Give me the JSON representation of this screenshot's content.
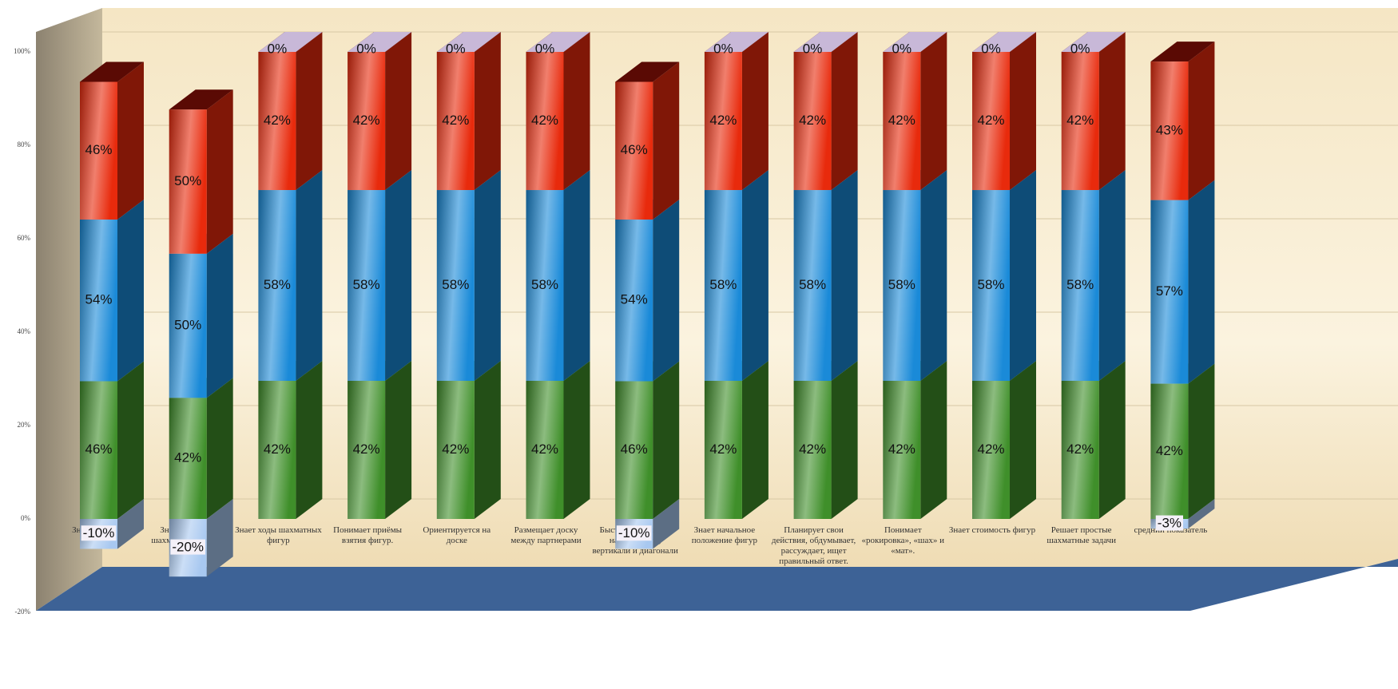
{
  "chart_data": {
    "type": "bar",
    "stacking": "percent",
    "categories": [
      "Знает термины",
      "Знает, называет шахматные фигуры.",
      "Знает ходы шахматных фигур",
      "Понимает приёмы взятия фигур.",
      "Ориентируется на доске",
      "Размещает доску между партнерами",
      "Быстро, правильно находит поля, вертикали и диагонали",
      "Знает начальное положение фигур",
      "Планирует свои действия, обдумывает, рассуждает, ищет правильный ответ.",
      "Понимает «рокировка», «шах» и «мат».",
      "Знает стоимость фигур",
      "Решает простые шахматные задачи",
      "средний показатель"
    ],
    "series": [
      {
        "color": "#a8c8f0",
        "values": [
          -10,
          -20,
          0,
          0,
          0,
          0,
          -10,
          0,
          0,
          0,
          0,
          0,
          -3
        ],
        "value_labels": [
          "-10%",
          "-20%",
          "0%",
          "0%",
          "0%",
          "0%",
          "-10%",
          "0%",
          "0%",
          "0%",
          "0%",
          "0%",
          "-3%"
        ]
      },
      {
        "color": "#3f8f2a",
        "values": [
          46,
          42,
          42,
          42,
          42,
          42,
          46,
          42,
          42,
          42,
          42,
          42,
          42
        ],
        "value_labels": [
          "46%",
          "42%",
          "42%",
          "42%",
          "42%",
          "42%",
          "46%",
          "42%",
          "42%",
          "42%",
          "42%",
          "42%",
          "42%"
        ]
      },
      {
        "color": "#1a8ad8",
        "values": [
          54,
          50,
          58,
          58,
          58,
          58,
          54,
          58,
          58,
          58,
          58,
          58,
          57
        ],
        "value_labels": [
          "54%",
          "50%",
          "58%",
          "58%",
          "58%",
          "58%",
          "54%",
          "58%",
          "58%",
          "58%",
          "58%",
          "58%",
          "57%"
        ]
      },
      {
        "color": "#e82a0c",
        "values": [
          46,
          50,
          42,
          42,
          42,
          42,
          46,
          42,
          42,
          42,
          42,
          42,
          43
        ],
        "value_labels": [
          "46%",
          "50%",
          "42%",
          "42%",
          "42%",
          "42%",
          "46%",
          "42%",
          "42%",
          "42%",
          "42%",
          "42%",
          "43%"
        ]
      }
    ],
    "ylim": [
      -20,
      100
    ],
    "yticks": [
      {
        "value": -20,
        "label": "-20%"
      },
      {
        "value": 0,
        "label": "0%"
      },
      {
        "value": 20,
        "label": "20%"
      },
      {
        "value": 40,
        "label": "40%"
      },
      {
        "value": 60,
        "label": "60%"
      },
      {
        "value": 80,
        "label": "80%"
      },
      {
        "value": 100,
        "label": "100%"
      }
    ],
    "grid": true
  }
}
